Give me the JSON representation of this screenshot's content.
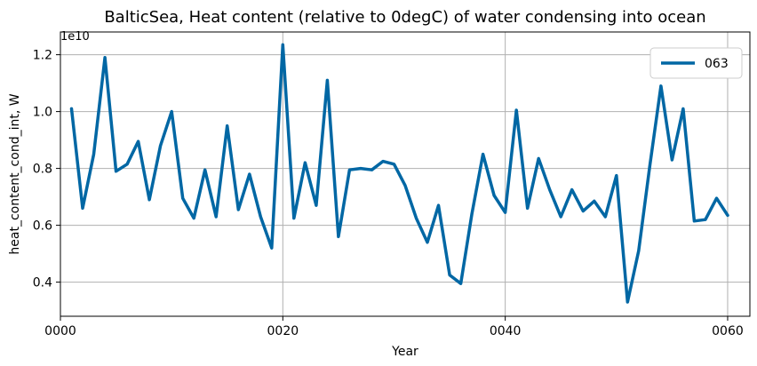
{
  "chart_data": {
    "type": "line",
    "title": "BalticSea, Heat content (relative to 0degC) of water condensing into ocean",
    "xlabel": "Year",
    "ylabel": "heat_content_cond_int, W",
    "y_offset_label": "1e10",
    "xlim": [
      0,
      62
    ],
    "ylim": [
      0.28,
      1.28
    ],
    "grid": true,
    "legend_position": "top-right",
    "x_ticks": [
      0,
      20,
      40,
      60
    ],
    "x_tick_labels": [
      "0000",
      "0020",
      "0040",
      "0060"
    ],
    "y_ticks": [
      0.4,
      0.6,
      0.8,
      1.0,
      1.2
    ],
    "y_tick_labels": [
      "0.4",
      "0.6",
      "0.8",
      "1.0",
      "1.2"
    ],
    "series": [
      {
        "name": "063",
        "color": "#0067a4",
        "x": [
          1,
          2,
          3,
          4,
          5,
          6,
          7,
          8,
          9,
          10,
          11,
          12,
          13,
          14,
          15,
          16,
          17,
          18,
          19,
          20,
          21,
          22,
          23,
          24,
          25,
          26,
          27,
          28,
          29,
          30,
          31,
          32,
          33,
          34,
          35,
          36,
          37,
          38,
          39,
          40,
          41,
          42,
          43,
          44,
          45,
          46,
          47,
          48,
          49,
          50,
          51,
          52,
          53,
          54,
          55,
          56,
          57,
          58,
          59,
          60
        ],
        "values": [
          1.01,
          0.66,
          0.85,
          1.19,
          0.79,
          0.815,
          0.895,
          0.69,
          0.88,
          1.0,
          0.695,
          0.625,
          0.795,
          0.63,
          0.95,
          0.655,
          0.78,
          0.63,
          0.52,
          1.235,
          0.625,
          0.82,
          0.67,
          1.11,
          0.56,
          0.795,
          0.8,
          0.795,
          0.825,
          0.815,
          0.74,
          0.625,
          0.54,
          0.67,
          0.425,
          0.395,
          0.64,
          0.85,
          0.705,
          0.645,
          1.005,
          0.66,
          0.835,
          0.725,
          0.63,
          0.725,
          0.65,
          0.685,
          0.63,
          0.775,
          0.33,
          0.51,
          0.81,
          1.09,
          0.83,
          1.01,
          0.615,
          0.62,
          0.695,
          0.635
        ]
      }
    ]
  }
}
